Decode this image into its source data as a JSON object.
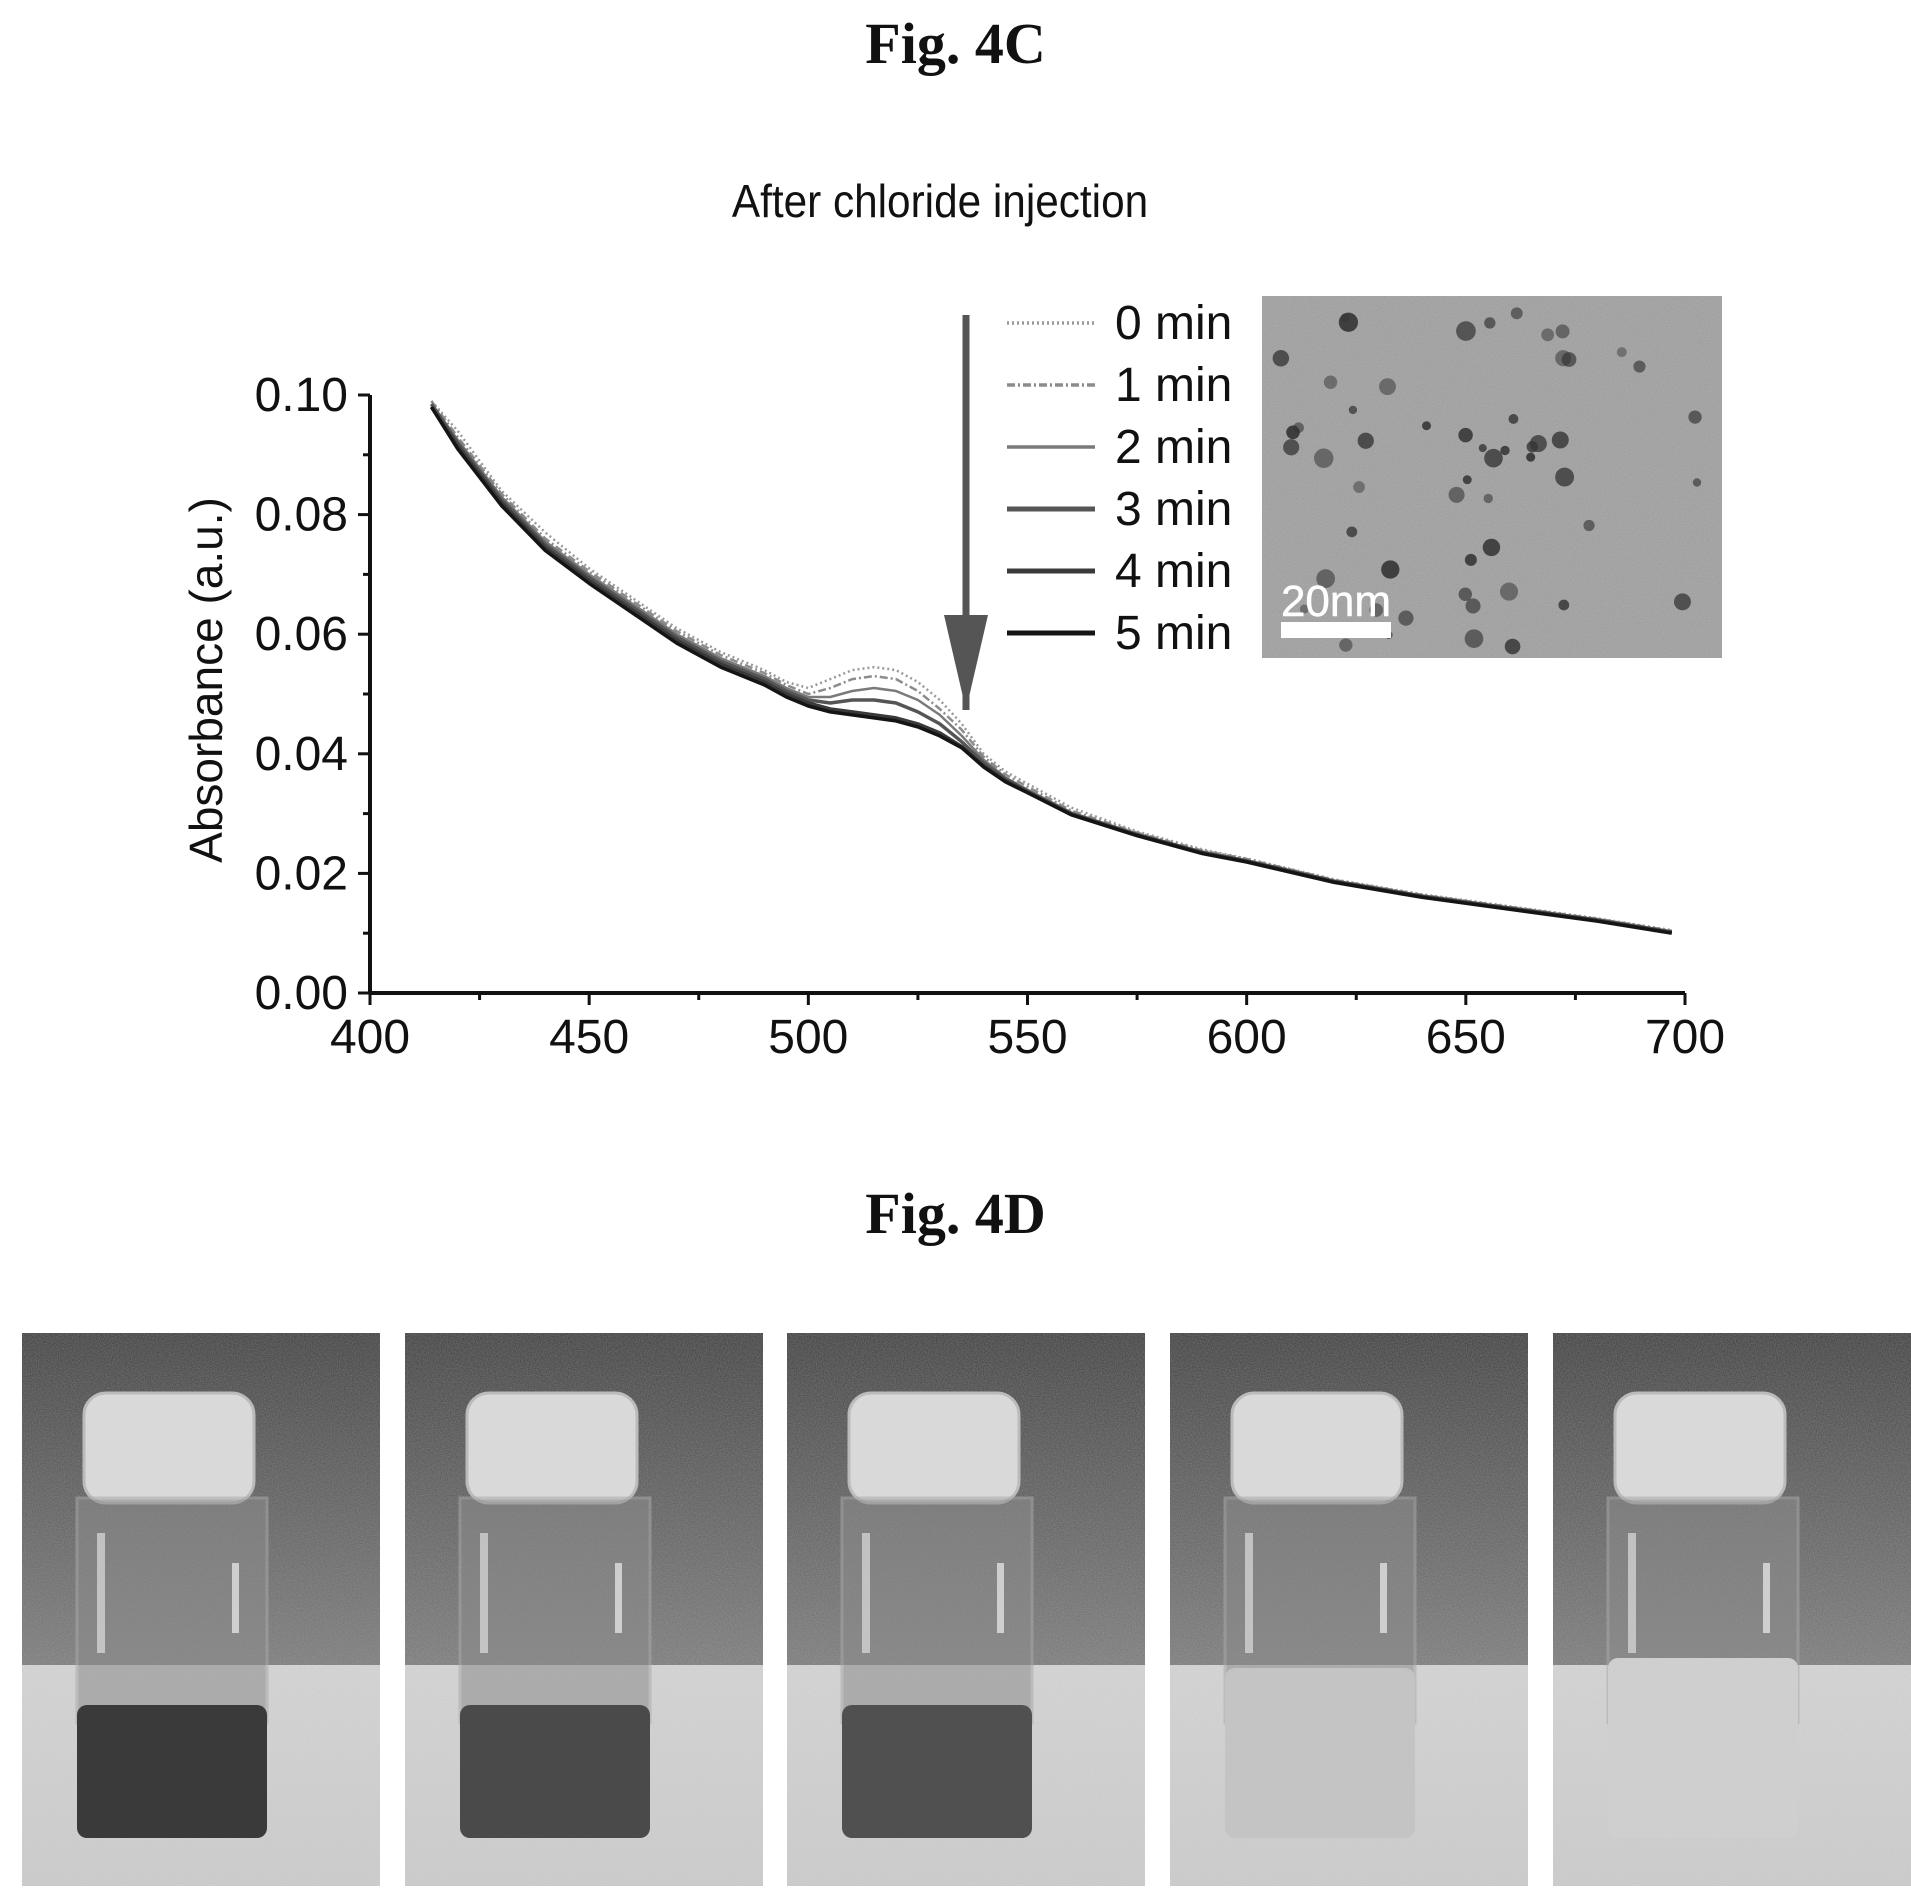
{
  "figure_c_label": "Fig. 4C",
  "figure_d_label": "Fig. 4D",
  "inset": {
    "scale_bar_label": "20nm"
  },
  "chart_data": {
    "type": "line",
    "title": "After chloride injection",
    "xlabel": "",
    "ylabel": "Absorbance (a.u.)",
    "xlim": [
      400,
      700
    ],
    "ylim": [
      0,
      0.1
    ],
    "xticks": [
      400,
      450,
      500,
      550,
      600,
      650,
      700
    ],
    "yticks": [
      "0.00",
      "0.02",
      "0.04",
      "0.06",
      "0.08",
      "0.10"
    ],
    "legend_position": "top-right",
    "annotation": "downward arrow beside legend indicating decreasing absorbance over time",
    "series": [
      {
        "name": "0 min",
        "color": "#9a9a9a",
        "style": "dotted",
        "x": [
          414,
          420,
          430,
          440,
          450,
          460,
          470,
          480,
          490,
          495,
          500,
          505,
          510,
          515,
          520,
          525,
          530,
          535,
          540,
          545,
          550,
          560,
          575,
          590,
          600,
          620,
          640,
          660,
          680,
          697
        ],
        "y": [
          0.099,
          0.094,
          0.084,
          0.077,
          0.071,
          0.066,
          0.061,
          0.057,
          0.054,
          0.052,
          0.051,
          0.0525,
          0.054,
          0.0545,
          0.054,
          0.052,
          0.049,
          0.045,
          0.04,
          0.037,
          0.035,
          0.031,
          0.027,
          0.024,
          0.0225,
          0.019,
          0.0165,
          0.0145,
          0.0125,
          0.0105
        ]
      },
      {
        "name": "1 min",
        "color": "#8c8c8c",
        "style": "dash-dot",
        "x": [
          414,
          420,
          430,
          440,
          450,
          460,
          470,
          480,
          490,
          495,
          500,
          505,
          510,
          515,
          520,
          525,
          530,
          535,
          540,
          545,
          550,
          560,
          575,
          590,
          600,
          620,
          640,
          660,
          680,
          697
        ],
        "y": [
          0.099,
          0.093,
          0.0835,
          0.076,
          0.0705,
          0.0655,
          0.0605,
          0.0565,
          0.0535,
          0.0515,
          0.05,
          0.051,
          0.0525,
          0.053,
          0.0525,
          0.0505,
          0.0475,
          0.044,
          0.0395,
          0.0365,
          0.0345,
          0.0305,
          0.0268,
          0.0238,
          0.0224,
          0.0189,
          0.0164,
          0.0144,
          0.0124,
          0.0104
        ]
      },
      {
        "name": "2 min",
        "color": "#7a7a7a",
        "style": "solid",
        "x": [
          414,
          420,
          430,
          440,
          450,
          460,
          470,
          480,
          490,
          495,
          500,
          505,
          510,
          515,
          520,
          525,
          530,
          535,
          540,
          545,
          550,
          560,
          575,
          590,
          600,
          620,
          640,
          660,
          680,
          697
        ],
        "y": [
          0.0985,
          0.0925,
          0.083,
          0.0755,
          0.07,
          0.065,
          0.06,
          0.056,
          0.053,
          0.051,
          0.0495,
          0.0495,
          0.0505,
          0.051,
          0.0505,
          0.049,
          0.0465,
          0.043,
          0.039,
          0.036,
          0.034,
          0.0302,
          0.0266,
          0.0236,
          0.0222,
          0.0188,
          0.0163,
          0.0143,
          0.0123,
          0.0103
        ]
      },
      {
        "name": "3 min",
        "color": "#555555",
        "style": "solid",
        "x": [
          414,
          420,
          430,
          440,
          450,
          460,
          470,
          480,
          490,
          495,
          500,
          505,
          510,
          515,
          520,
          525,
          530,
          535,
          540,
          545,
          550,
          560,
          575,
          590,
          600,
          620,
          640,
          660,
          680,
          697
        ],
        "y": [
          0.0985,
          0.092,
          0.0825,
          0.075,
          0.0695,
          0.0645,
          0.0595,
          0.0555,
          0.0525,
          0.0505,
          0.049,
          0.0485,
          0.049,
          0.049,
          0.0485,
          0.047,
          0.045,
          0.042,
          0.0385,
          0.0358,
          0.0338,
          0.03,
          0.0265,
          0.0235,
          0.0221,
          0.0187,
          0.0162,
          0.0142,
          0.0122,
          0.0102
        ]
      },
      {
        "name": "4 min",
        "color": "#3a3a3a",
        "style": "solid",
        "x": [
          414,
          420,
          430,
          440,
          450,
          460,
          470,
          480,
          490,
          495,
          500,
          505,
          510,
          515,
          520,
          525,
          530,
          535,
          540,
          545,
          550,
          560,
          575,
          590,
          600,
          620,
          640,
          660,
          680,
          697
        ],
        "y": [
          0.098,
          0.0915,
          0.082,
          0.0745,
          0.069,
          0.064,
          0.059,
          0.055,
          0.052,
          0.05,
          0.0485,
          0.0475,
          0.047,
          0.0465,
          0.046,
          0.045,
          0.0435,
          0.0412,
          0.038,
          0.0355,
          0.0336,
          0.0299,
          0.0264,
          0.0234,
          0.022,
          0.0186,
          0.0161,
          0.0141,
          0.0121,
          0.0101
        ]
      },
      {
        "name": "5 min",
        "color": "#151515",
        "style": "solid",
        "x": [
          414,
          420,
          430,
          440,
          450,
          460,
          470,
          480,
          490,
          495,
          500,
          505,
          510,
          515,
          520,
          525,
          530,
          535,
          540,
          545,
          550,
          560,
          575,
          590,
          600,
          620,
          640,
          660,
          680,
          697
        ],
        "y": [
          0.098,
          0.091,
          0.0815,
          0.074,
          0.0685,
          0.0635,
          0.0585,
          0.0545,
          0.0515,
          0.0495,
          0.048,
          0.047,
          0.0465,
          0.046,
          0.0455,
          0.0445,
          0.043,
          0.041,
          0.0378,
          0.0353,
          0.0335,
          0.0298,
          0.0263,
          0.0233,
          0.0219,
          0.0185,
          0.016,
          0.014,
          0.012,
          0.01
        ]
      }
    ]
  }
}
